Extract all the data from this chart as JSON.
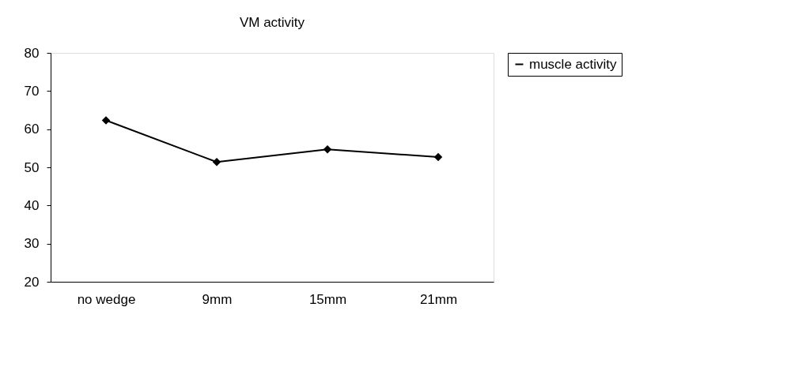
{
  "chart_data": {
    "type": "line",
    "title": "VM activity",
    "categories": [
      "no wedge",
      "9mm",
      "15mm",
      "21mm"
    ],
    "series": [
      {
        "name": "muscle activity",
        "color": "#000000",
        "values": [
          62.3,
          51.4,
          54.7,
          52.7
        ]
      }
    ],
    "ylim": [
      20,
      80
    ],
    "yticks": [
      20,
      30,
      40,
      50,
      60,
      70,
      80
    ],
    "grid": false,
    "legend": "right",
    "marker": "diamond",
    "line_style": "solid"
  }
}
